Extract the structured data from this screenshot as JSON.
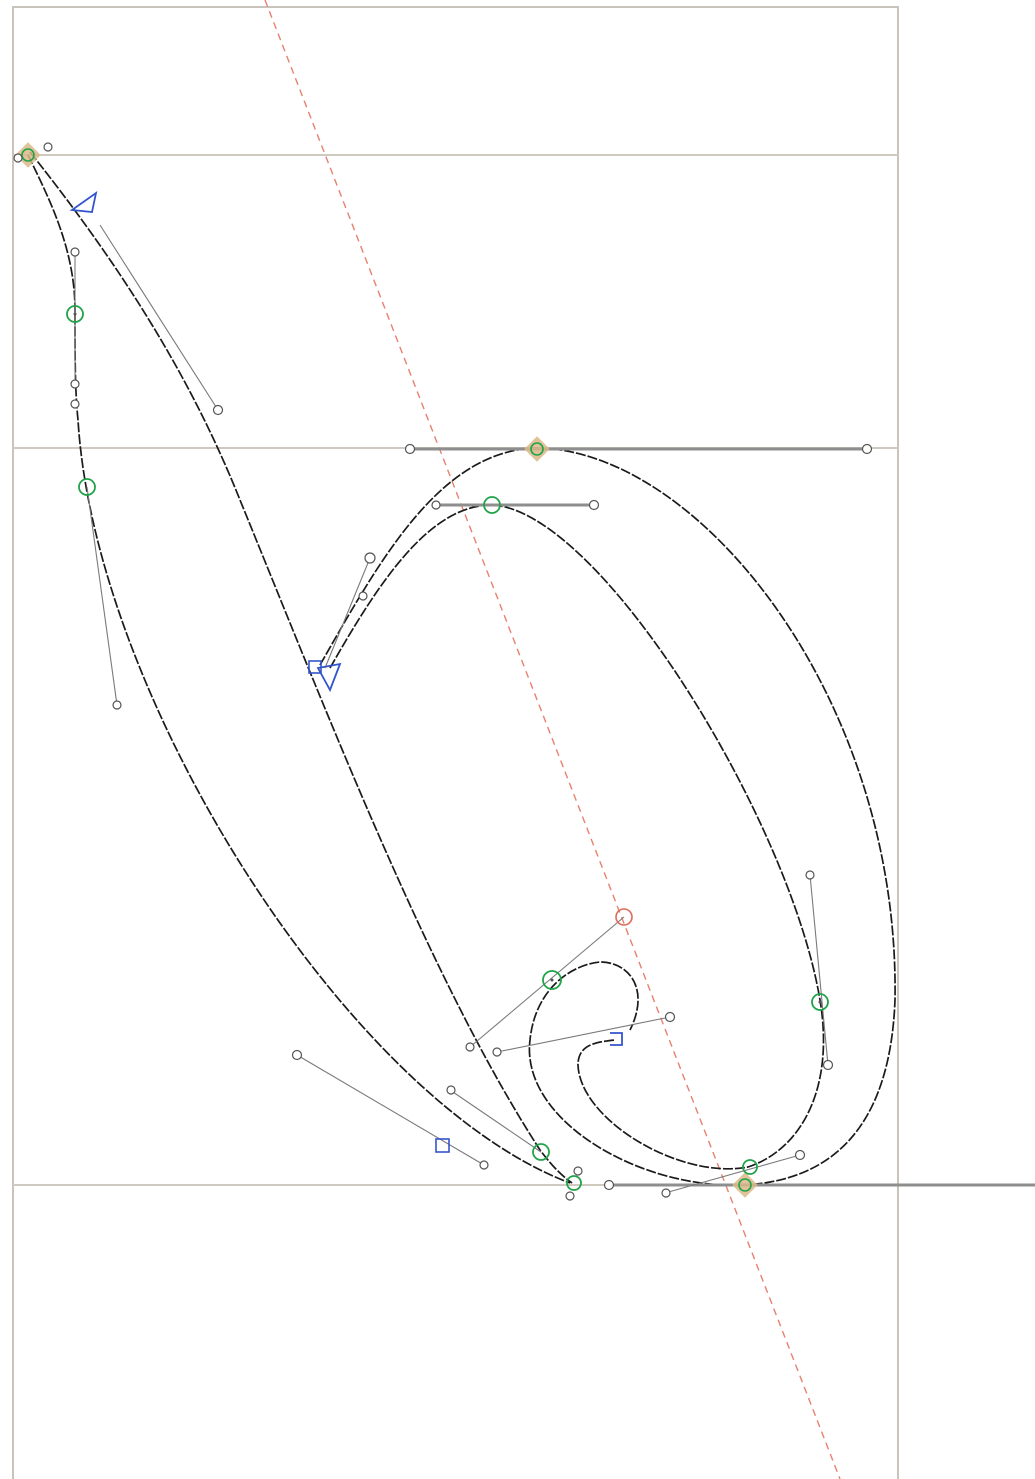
{
  "editor": {
    "view": "glyph-outline",
    "guides": [
      "ascender",
      "x-height",
      "baseline",
      "italic-slant"
    ],
    "colors": {
      "background": "#ffffff",
      "metrics": "#cfc9c0",
      "outline": "#1a1a1a",
      "italic_guide": "#e8816f",
      "curve_point": "#22a34a",
      "corner_point": "#3355cc",
      "extrema_marker": "#d9b98a",
      "handle": "#7a7a7a"
    },
    "point_types": [
      "curve-point",
      "corner-point",
      "tangent-point",
      "off-curve-handle",
      "extrema-marker",
      "anchor"
    ]
  }
}
